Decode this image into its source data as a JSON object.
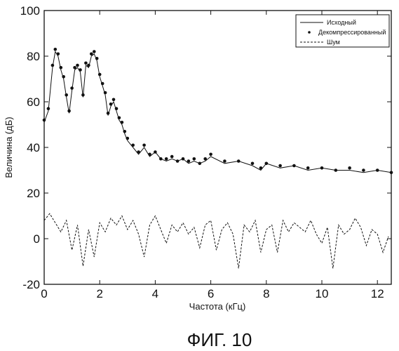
{
  "chart_data": {
    "type": "line",
    "xlabel": "Частота (кГц)",
    "ylabel": "Величина (дБ)",
    "xlim": [
      0,
      12.5
    ],
    "ylim": [
      -20,
      100
    ],
    "xticks": [
      "0",
      "2",
      "4",
      "6",
      "8",
      "10",
      "12"
    ],
    "yticks": [
      "-20",
      "0",
      "20",
      "40",
      "60",
      "80",
      "100"
    ],
    "legend_position": "top-right",
    "grid": false,
    "series": [
      {
        "name": "Исходный",
        "style": "solid",
        "x": [
          0.0,
          0.15,
          0.3,
          0.4,
          0.5,
          0.6,
          0.7,
          0.8,
          0.9,
          1.0,
          1.1,
          1.2,
          1.3,
          1.4,
          1.5,
          1.6,
          1.7,
          1.8,
          1.9,
          2.0,
          2.1,
          2.2,
          2.3,
          2.4,
          2.5,
          2.6,
          2.7,
          2.8,
          2.9,
          3.0,
          3.2,
          3.4,
          3.6,
          3.8,
          4.0,
          4.2,
          4.4,
          4.6,
          4.8,
          5.0,
          5.2,
          5.4,
          5.6,
          5.8,
          6.0,
          6.5,
          7.0,
          7.5,
          7.8,
          8.0,
          8.5,
          9.0,
          9.5,
          10.0,
          10.5,
          11.0,
          11.5,
          12.0,
          12.5
        ],
        "y": [
          51,
          56,
          75,
          82,
          80,
          74,
          70,
          62,
          55,
          65,
          74,
          75,
          73,
          62,
          76,
          75,
          80,
          81,
          78,
          71,
          67,
          63,
          54,
          58,
          60,
          56,
          52,
          50,
          46,
          43,
          40,
          37,
          40,
          36,
          38,
          35,
          34,
          35,
          34,
          35,
          33,
          34,
          33,
          34,
          36,
          33,
          34,
          32,
          30,
          33,
          31,
          32,
          30,
          31,
          30,
          30,
          29,
          30,
          29
        ]
      },
      {
        "name": "Декомпрессированный",
        "style": "dots",
        "x": [
          0.0,
          0.15,
          0.3,
          0.4,
          0.5,
          0.6,
          0.7,
          0.8,
          0.9,
          1.0,
          1.1,
          1.2,
          1.3,
          1.4,
          1.5,
          1.6,
          1.7,
          1.8,
          1.9,
          2.0,
          2.1,
          2.2,
          2.3,
          2.4,
          2.5,
          2.6,
          2.7,
          2.8,
          2.9,
          3.0,
          3.2,
          3.4,
          3.6,
          3.8,
          4.0,
          4.2,
          4.4,
          4.6,
          4.8,
          5.0,
          5.2,
          5.4,
          5.6,
          5.8,
          6.0,
          6.5,
          7.0,
          7.5,
          7.8,
          8.0,
          8.5,
          9.0,
          9.5,
          10.0,
          10.5,
          11.0,
          11.5,
          12.0,
          12.5
        ],
        "y": [
          52,
          57,
          76,
          83,
          81,
          75,
          71,
          63,
          56,
          66,
          75,
          76,
          74,
          63,
          77,
          76,
          81,
          82,
          79,
          72,
          68,
          64,
          55,
          59,
          61,
          57,
          53,
          51,
          47,
          44,
          41,
          38,
          41,
          37,
          38,
          35,
          35,
          36,
          34,
          35,
          34,
          35,
          33,
          35,
          37,
          34,
          34,
          33,
          31,
          33,
          32,
          32,
          31,
          31,
          30,
          31,
          30,
          30,
          29
        ]
      },
      {
        "name": "Шум",
        "style": "dashed",
        "x": [
          0.0,
          0.2,
          0.4,
          0.6,
          0.8,
          1.0,
          1.2,
          1.4,
          1.6,
          1.8,
          2.0,
          2.2,
          2.4,
          2.6,
          2.8,
          3.0,
          3.2,
          3.4,
          3.6,
          3.8,
          4.0,
          4.2,
          4.4,
          4.6,
          4.8,
          5.0,
          5.2,
          5.4,
          5.6,
          5.8,
          6.0,
          6.2,
          6.4,
          6.6,
          6.8,
          7.0,
          7.2,
          7.4,
          7.6,
          7.8,
          8.0,
          8.2,
          8.4,
          8.6,
          8.8,
          9.0,
          9.2,
          9.4,
          9.6,
          9.8,
          10.0,
          10.2,
          10.4,
          10.6,
          10.8,
          11.0,
          11.2,
          11.4,
          11.6,
          11.8,
          12.0,
          12.2,
          12.4
        ],
        "y": [
          8,
          11,
          7,
          3,
          8,
          -5,
          6,
          -12,
          4,
          -8,
          7,
          3,
          9,
          6,
          10,
          4,
          8,
          2,
          -8,
          6,
          10,
          4,
          -2,
          6,
          3,
          7,
          2,
          5,
          -4,
          6,
          8,
          -5,
          4,
          7,
          2,
          -13,
          6,
          3,
          8,
          -6,
          4,
          6,
          -6,
          8,
          3,
          7,
          5,
          3,
          8,
          2,
          -2,
          5,
          -13,
          6,
          2,
          4,
          9,
          5,
          -3,
          4,
          2,
          -6,
          1
        ]
      }
    ]
  },
  "caption": "ФИГ. 10"
}
